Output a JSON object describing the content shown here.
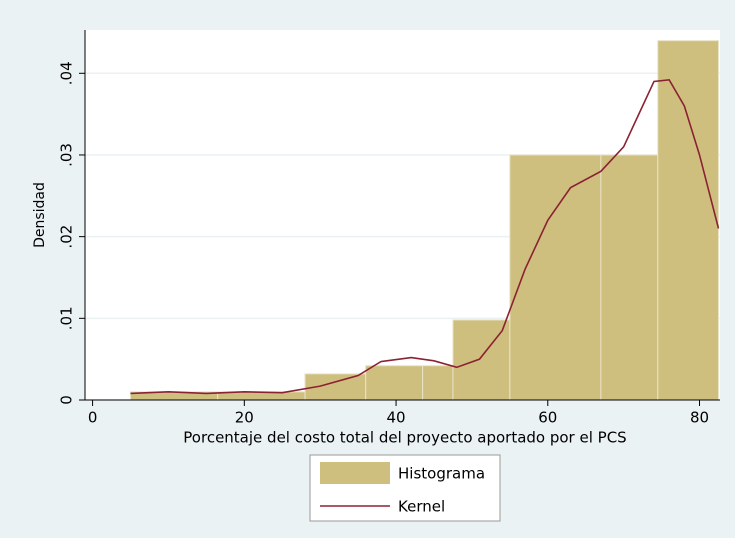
{
  "chart_data": {
    "type": "histogram",
    "x_label": "Porcentaje del costo total del proyecto aportado por el PCS",
    "y_label": "Densidad",
    "xlim": [
      -1,
      82.7
    ],
    "ylim": [
      0,
      0.0453
    ],
    "xticks": [
      0,
      20,
      40,
      60,
      80
    ],
    "yticks": [
      0,
      {
        "value": 0.01,
        "label": ".01"
      },
      {
        "value": 0.02,
        "label": ".02"
      },
      {
        "value": 0.03,
        "label": ".03"
      },
      {
        "value": 0.04,
        "label": ".04"
      }
    ],
    "grid": true,
    "legend": "bottom",
    "histogram": {
      "name": "Histograma",
      "color": "#cfbf7f",
      "bins": [
        5,
        16.5,
        28,
        36,
        43.5,
        47.5,
        55,
        67,
        74.5,
        82.5
      ],
      "values": [
        0.001,
        0.001,
        0.0032,
        0.0042,
        0.0042,
        0.0098,
        0.03,
        0.03,
        0.044
      ]
    },
    "kernel": {
      "name": "Kernel",
      "color": "#8b2232",
      "x": [
        5,
        10,
        15,
        20,
        25,
        30,
        35,
        38,
        42,
        45,
        48,
        51,
        54,
        57,
        60,
        63,
        67,
        70,
        72,
        74,
        76,
        78,
        80,
        82.5
      ],
      "values": [
        0.0008,
        0.001,
        0.0008,
        0.001,
        0.0009,
        0.0017,
        0.003,
        0.0047,
        0.0052,
        0.0048,
        0.004,
        0.005,
        0.0085,
        0.016,
        0.022,
        0.026,
        0.028,
        0.031,
        0.035,
        0.039,
        0.0392,
        0.036,
        0.03,
        0.021
      ]
    }
  }
}
